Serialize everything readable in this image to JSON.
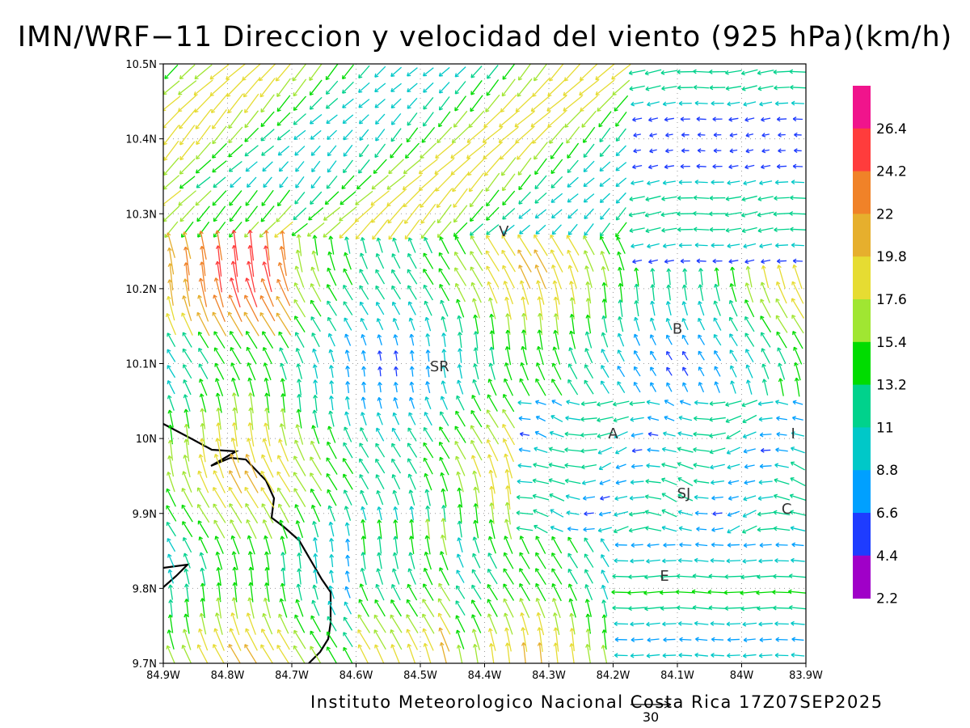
{
  "title": "IMN/WRF−11 Direccion y velocidad del viento (925 hPa)(km/h)",
  "credit": "Instituto Meteorologico Nacional Costa Rica  17Z07SEP2025",
  "ref_vector_label": "30",
  "lon_ticks": [
    "84.9W",
    "84.8W",
    "84.7W",
    "84.6W",
    "84.5W",
    "84.4W",
    "84.3W",
    "84.2W",
    "84.1W",
    "84W",
    "83.9W"
  ],
  "lat_ticks": [
    "10.5N",
    "10.4N",
    "10.3N",
    "10.2N",
    "10.1N",
    "10N",
    "9.9N",
    "9.8N",
    "9.7N"
  ],
  "colorbar": {
    "labels": [
      "26.4",
      "24.2",
      "22",
      "19.8",
      "17.6",
      "15.4",
      "13.2",
      "11",
      "8.8",
      "6.6",
      "4.4",
      "2.2"
    ],
    "colors": [
      "#f0148c",
      "#ff3c3c",
      "#f08228",
      "#e6af2d",
      "#e6dc32",
      "#a0e632",
      "#00dc00",
      "#00d28c",
      "#00c8c8",
      "#00a0ff",
      "#1e3cff",
      "#a000c8"
    ]
  },
  "places": [
    {
      "label": "V",
      "lon": -84.37,
      "lat": 10.27
    },
    {
      "label": "SR",
      "lon": -84.47,
      "lat": 10.09
    },
    {
      "label": "B",
      "lon": -84.1,
      "lat": 10.14
    },
    {
      "label": "A",
      "lon": -84.2,
      "lat": 10.0
    },
    {
      "label": "I",
      "lon": -83.92,
      "lat": 10.0
    },
    {
      "label": "SJ",
      "lon": -84.09,
      "lat": 9.92
    },
    {
      "label": "C",
      "lon": -83.93,
      "lat": 9.9
    },
    {
      "label": "E",
      "lon": -84.12,
      "lat": 9.81
    }
  ],
  "chart_data": {
    "type": "vector-field",
    "region": {
      "lon_range": [
        -84.9,
        -83.9
      ],
      "lat_range": [
        9.7,
        10.5
      ]
    },
    "variable": "wind direction and speed at 925 hPa",
    "units": "km/h",
    "reference_vector_kmh": 30,
    "color_scale_levels_kmh": [
      2.2,
      4.4,
      6.6,
      8.8,
      11,
      13.2,
      15.4,
      17.6,
      19.8,
      22,
      24.2,
      26.4
    ],
    "grid_lines": true,
    "legend_placement": "right"
  }
}
